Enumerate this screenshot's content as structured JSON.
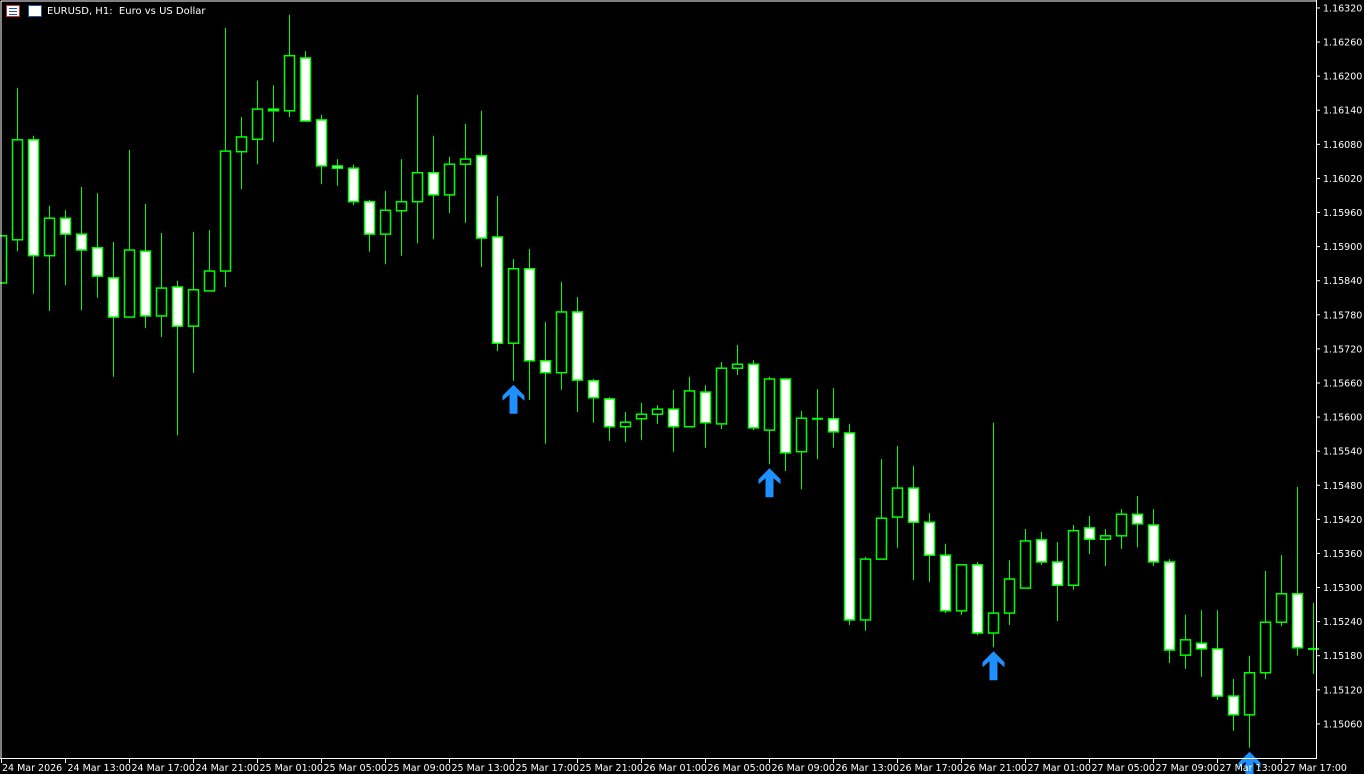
{
  "header": {
    "title": "EURUSD, H1:  Euro vs US Dollar"
  },
  "colors": {
    "background": "#000000",
    "outline": "#00ff00",
    "bear_fill": "#ffffff",
    "bull_fill": "#000000",
    "axis": "#ffffff",
    "signal_arrow": "#1e90ff"
  },
  "chart_data": {
    "type": "candlestick",
    "title": "EURUSD, H1:  Euro vs US Dollar",
    "ylim": [
      1.15,
      1.16334
    ],
    "y_ticks": [
      "1.16320",
      "1.16260",
      "1.16200",
      "1.16140",
      "1.16080",
      "1.16020",
      "1.15960",
      "1.15900",
      "1.15840",
      "1.15780",
      "1.15720",
      "1.15660",
      "1.15600",
      "1.15540",
      "1.15480",
      "1.15420",
      "1.15360",
      "1.15300",
      "1.15240",
      "1.15180",
      "1.15120",
      "1.15060"
    ],
    "x_ticks": [
      "24 Mar 2026",
      "24 Mar 13:00",
      "24 Mar 17:00",
      "24 Mar 21:00",
      "25 Mar 01:00",
      "25 Mar 05:00",
      "25 Mar 09:00",
      "25 Mar 13:00",
      "25 Mar 17:00",
      "25 Mar 21:00",
      "26 Mar 01:00",
      "26 Mar 05:00",
      "26 Mar 09:00",
      "26 Mar 13:00",
      "26 Mar 17:00",
      "26 Mar 21:00",
      "27 Mar 01:00",
      "27 Mar 05:00",
      "27 Mar 09:00",
      "27 Mar 13:00",
      "27 Mar 17:00"
    ],
    "x_tick_every_candles": 4,
    "candle_fields": [
      "open",
      "high",
      "low",
      "close"
    ],
    "candles": [
      [
        1.15836,
        1.15919,
        1.15836,
        1.15919
      ],
      [
        1.15912,
        1.16179,
        1.15892,
        1.16088
      ],
      [
        1.16088,
        1.16095,
        1.15817,
        1.15884
      ],
      [
        1.15884,
        1.15972,
        1.15787,
        1.1595
      ],
      [
        1.1595,
        1.15964,
        1.15832,
        1.15922
      ],
      [
        1.15922,
        1.16005,
        1.15788,
        1.15894
      ],
      [
        1.15898,
        1.15994,
        1.1581,
        1.15848
      ],
      [
        1.15845,
        1.15908,
        1.15671,
        1.15776
      ],
      [
        1.15776,
        1.1607,
        1.15776,
        1.15894
      ],
      [
        1.15892,
        1.15975,
        1.15757,
        1.15778
      ],
      [
        1.15778,
        1.15924,
        1.15741,
        1.15827
      ],
      [
        1.15829,
        1.1584,
        1.15568,
        1.1576
      ],
      [
        1.1576,
        1.15926,
        1.15678,
        1.15824
      ],
      [
        1.15822,
        1.15929,
        1.15822,
        1.15857
      ],
      [
        1.15857,
        1.16285,
        1.15829,
        1.16068
      ],
      [
        1.16067,
        1.16128,
        1.16001,
        1.16093
      ],
      [
        1.16089,
        1.16192,
        1.16045,
        1.16142
      ],
      [
        1.16142,
        1.16184,
        1.16084,
        1.16139
      ],
      [
        1.16139,
        1.16308,
        1.16128,
        1.16236
      ],
      [
        1.16232,
        1.16244,
        1.16121,
        1.16121
      ],
      [
        1.16123,
        1.16132,
        1.1601,
        1.16042
      ],
      [
        1.16042,
        1.16054,
        1.16007,
        1.16038
      ],
      [
        1.16038,
        1.16044,
        1.15973,
        1.15979
      ],
      [
        1.15979,
        1.15982,
        1.15891,
        1.15922
      ],
      [
        1.15922,
        1.15998,
        1.15869,
        1.15964
      ],
      [
        1.15963,
        1.16054,
        1.15884,
        1.15979
      ],
      [
        1.15979,
        1.16167,
        1.15906,
        1.1603
      ],
      [
        1.1603,
        1.16095,
        1.15913,
        1.15991
      ],
      [
        1.15991,
        1.16058,
        1.15959,
        1.16045
      ],
      [
        1.16045,
        1.16116,
        1.15942,
        1.16054
      ],
      [
        1.1606,
        1.16139,
        1.15864,
        1.15915
      ],
      [
        1.15917,
        1.15989,
        1.15716,
        1.1573
      ],
      [
        1.1573,
        1.15878,
        1.15664,
        1.15861
      ],
      [
        1.15861,
        1.15896,
        1.1563,
        1.15699
      ],
      [
        1.15699,
        1.15767,
        1.15553,
        1.15678
      ],
      [
        1.15678,
        1.15838,
        1.15648,
        1.15785
      ],
      [
        1.15785,
        1.15811,
        1.15609,
        1.15665
      ],
      [
        1.15664,
        1.15667,
        1.1559,
        1.15634
      ],
      [
        1.15632,
        1.15635,
        1.15558,
        1.15583
      ],
      [
        1.15583,
        1.15609,
        1.15556,
        1.15591
      ],
      [
        1.15597,
        1.15625,
        1.1556,
        1.15605
      ],
      [
        1.15605,
        1.15621,
        1.15588,
        1.15614
      ],
      [
        1.15614,
        1.15648,
        1.15539,
        1.15583
      ],
      [
        1.15583,
        1.15671,
        1.15583,
        1.15646
      ],
      [
        1.15644,
        1.15656,
        1.15546,
        1.1559
      ],
      [
        1.15588,
        1.15697,
        1.15579,
        1.15686
      ],
      [
        1.15686,
        1.15727,
        1.15674,
        1.15693
      ],
      [
        1.15693,
        1.157,
        1.15577,
        1.15581
      ],
      [
        1.15577,
        1.15671,
        1.15517,
        1.15667
      ],
      [
        1.15667,
        1.15667,
        1.15505,
        1.15537
      ],
      [
        1.15539,
        1.15611,
        1.15473,
        1.15598
      ],
      [
        1.15597,
        1.15649,
        1.15526,
        1.15597
      ],
      [
        1.15597,
        1.15651,
        1.15546,
        1.15574
      ],
      [
        1.15572,
        1.15588,
        1.15234,
        1.15243
      ],
      [
        1.15243,
        1.15354,
        1.15224,
        1.1535
      ],
      [
        1.1535,
        1.15526,
        1.1535,
        1.15422
      ],
      [
        1.15424,
        1.15549,
        1.1537,
        1.15475
      ],
      [
        1.15475,
        1.15514,
        1.15313,
        1.15415
      ],
      [
        1.15415,
        1.15431,
        1.1531,
        1.15357
      ],
      [
        1.15357,
        1.15377,
        1.15255,
        1.15259
      ],
      [
        1.15259,
        1.1534,
        1.15252,
        1.1534
      ],
      [
        1.1534,
        1.15345,
        1.15216,
        1.1522
      ],
      [
        1.1522,
        1.1559,
        1.15195,
        1.15255
      ],
      [
        1.15255,
        1.15348,
        1.15234,
        1.15315
      ],
      [
        1.15299,
        1.15403,
        1.15299,
        1.15382
      ],
      [
        1.15384,
        1.15398,
        1.1534,
        1.15345
      ],
      [
        1.15345,
        1.1538,
        1.15241,
        1.15304
      ],
      [
        1.15304,
        1.1541,
        1.15296,
        1.154
      ],
      [
        1.15405,
        1.15426,
        1.15359,
        1.15385
      ],
      [
        1.15385,
        1.15403,
        1.15338,
        1.15391
      ],
      [
        1.15391,
        1.15438,
        1.15368,
        1.15429
      ],
      [
        1.15429,
        1.15461,
        1.15371,
        1.15412
      ],
      [
        1.1541,
        1.15438,
        1.15338,
        1.15345
      ],
      [
        1.15345,
        1.1535,
        1.15167,
        1.1519
      ],
      [
        1.15181,
        1.15252,
        1.15157,
        1.15208
      ],
      [
        1.15202,
        1.1526,
        1.15143,
        1.15192
      ],
      [
        1.15192,
        1.1526,
        1.15102,
        1.15109
      ],
      [
        1.15109,
        1.15139,
        1.15048,
        1.15076
      ],
      [
        1.15076,
        1.1518,
        1.15018,
        1.1515
      ],
      [
        1.1515,
        1.15329,
        1.15139,
        1.15239
      ],
      [
        1.15239,
        1.15357,
        1.15232,
        1.15289
      ],
      [
        1.15289,
        1.15477,
        1.1518,
        1.15194
      ],
      [
        1.15192,
        1.15273,
        1.15148,
        1.15192
      ]
    ],
    "signal_arrows": [
      {
        "candle": 32,
        "direction": "up"
      },
      {
        "candle": 48,
        "direction": "up"
      },
      {
        "candle": 62,
        "direction": "up"
      },
      {
        "candle": 78,
        "direction": "up"
      }
    ],
    "grid": false
  }
}
